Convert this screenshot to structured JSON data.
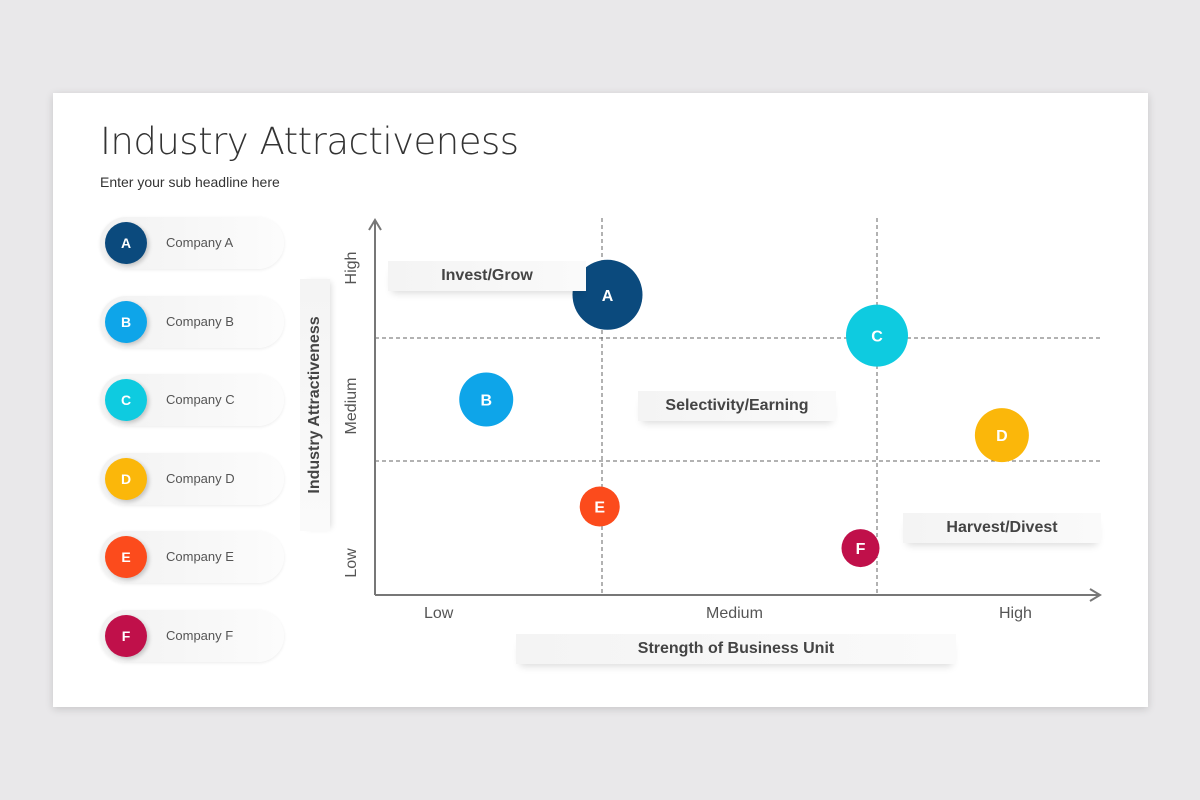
{
  "title": "Industry Attractiveness",
  "subtitle": "Enter your sub headline here",
  "legend": [
    {
      "letter": "A",
      "label": "Company A",
      "color": "#0b4a7d"
    },
    {
      "letter": "B",
      "label": "Company B",
      "color": "#0ea5e9"
    },
    {
      "letter": "C",
      "label": "Company C",
      "color": "#0ecbe0"
    },
    {
      "letter": "D",
      "label": "Company D",
      "color": "#fbb70a"
    },
    {
      "letter": "E",
      "label": "Company E",
      "color": "#fc4b1c"
    },
    {
      "letter": "F",
      "label": "Company F",
      "color": "#c0104a"
    }
  ],
  "quadrant_labels": {
    "invest": "Invest/Grow",
    "selectivity": "Selectivity/Earning",
    "harvest": "Harvest/Divest"
  },
  "chart_data": {
    "type": "scatter",
    "subtype": "bubble",
    "xlabel": "Strength of Business Unit",
    "ylabel": "Industry Attractiveness",
    "x_ticks": [
      "Low",
      "Medium",
      "High"
    ],
    "y_ticks": [
      "Low",
      "Medium",
      "High"
    ],
    "xlim": [
      0,
      3
    ],
    "ylim": [
      0,
      3
    ],
    "grid": "dashed dividers at tier boundaries",
    "points": [
      {
        "label": "A",
        "x": 1.02,
        "y": 2.36,
        "size": 35,
        "color": "#0b4a7d"
      },
      {
        "label": "B",
        "x": 0.49,
        "y": 1.5,
        "size": 27,
        "color": "#0ea5e9"
      },
      {
        "label": "C",
        "x": 2.0,
        "y": 2.02,
        "size": 31,
        "color": "#0ecbe0"
      },
      {
        "label": "D",
        "x": 2.56,
        "y": 1.21,
        "size": 27,
        "color": "#fbb70a"
      },
      {
        "label": "E",
        "x": 0.99,
        "y": 0.66,
        "size": 20,
        "color": "#fc4b1c"
      },
      {
        "label": "F",
        "x": 1.94,
        "y": 0.35,
        "size": 19,
        "color": "#c0104a"
      }
    ]
  }
}
